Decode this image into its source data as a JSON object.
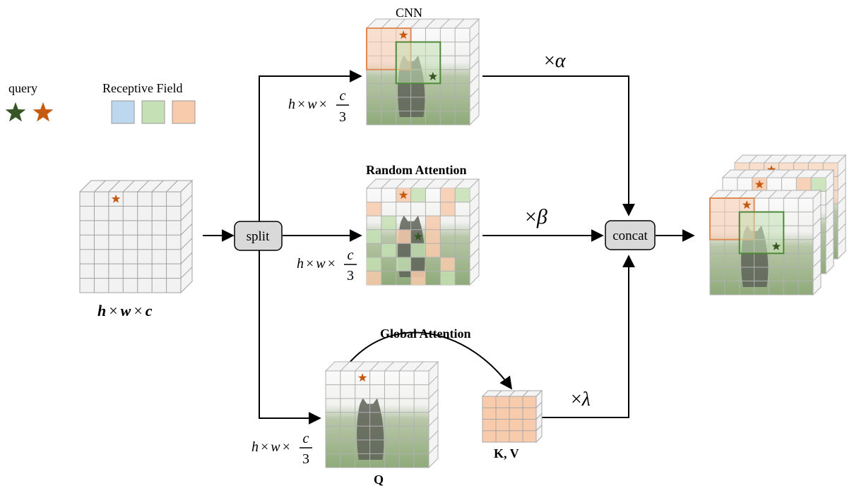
{
  "legend": {
    "query_label": "query",
    "receptive_label": "Receptive Field",
    "colors": {
      "blue": "#bdd7ee",
      "green": "#c5e0b4",
      "orange": "#f8cbad",
      "star_green": "#375623",
      "star_orange": "#c55a11"
    }
  },
  "input": {
    "dim": "h×w×c",
    "h": "h",
    "w": "w",
    "c": "c",
    "times": "×"
  },
  "split": {
    "label": "split"
  },
  "concat": {
    "label": "concat"
  },
  "branches": {
    "cnn": {
      "title": "CNN",
      "coef": "×α",
      "times": "×",
      "alpha": "α",
      "dim": {
        "h": "h",
        "w": "w",
        "c": "c",
        "times": "×",
        "den": "3"
      }
    },
    "random": {
      "title": "Random Attention",
      "coef": "×β",
      "times": "×",
      "beta": "β",
      "dim": {
        "h": "h",
        "w": "w",
        "c": "c",
        "times": "×",
        "den": "3"
      }
    },
    "global": {
      "title": "Global  Attention",
      "coef": "×λ",
      "times": "×",
      "lambda": "λ",
      "q_label": "Q",
      "kv_label": "K, V",
      "dim": {
        "h": "h",
        "w": "w",
        "c": "c",
        "times": "×",
        "den": "3"
      }
    }
  }
}
